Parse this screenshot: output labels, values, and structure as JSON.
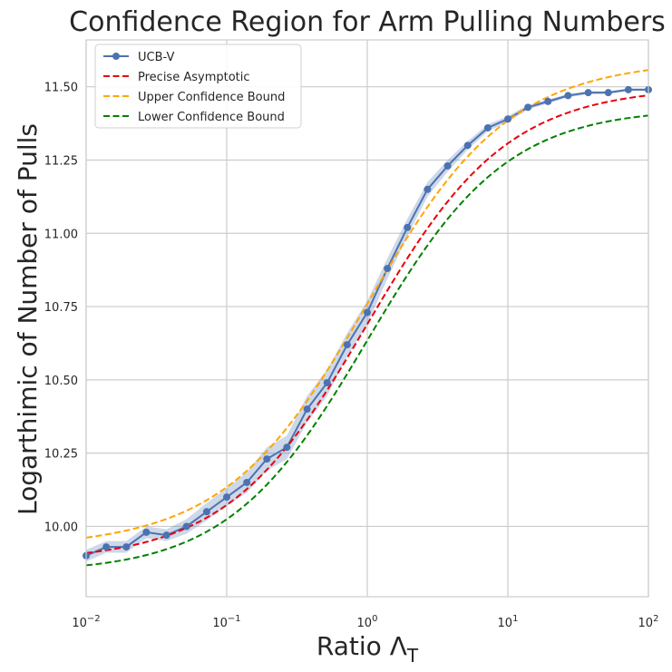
{
  "chart_data": {
    "type": "line",
    "title": "Confidence Region for Arm Pulling Numbers",
    "xlabel_main": "Ratio Λ",
    "xlabel_sub": "T",
    "ylabel": "Logarthimic of Number of Pulls",
    "xscale": "log",
    "xlim": [
      0.01,
      100
    ],
    "ylim": [
      9.76,
      11.66
    ],
    "grid": true,
    "legend_position": "top-left",
    "x_ticks": [
      {
        "value": 0.01,
        "base": "10",
        "exp": "−2"
      },
      {
        "value": 0.1,
        "base": "10",
        "exp": "−1"
      },
      {
        "value": 1,
        "base": "10",
        "exp": "0"
      },
      {
        "value": 10,
        "base": "10",
        "exp": "1"
      },
      {
        "value": 100,
        "base": "10",
        "exp": "2"
      }
    ],
    "y_ticks": [
      {
        "value": 10.0,
        "label": "10.00"
      },
      {
        "value": 10.25,
        "label": "10.25"
      },
      {
        "value": 10.5,
        "label": "10.50"
      },
      {
        "value": 10.75,
        "label": "10.75"
      },
      {
        "value": 11.0,
        "label": "11.00"
      },
      {
        "value": 11.25,
        "label": "11.25"
      },
      {
        "value": 11.5,
        "label": "11.50"
      }
    ],
    "asymptote": {
      "low": 9.88,
      "high": 11.5,
      "center_log10": 0.0,
      "scale": 0.5
    },
    "series": [
      {
        "name": "UCB-V",
        "color": "#4c72b0",
        "style": "solid-marker",
        "x": [
          0.01,
          0.0139,
          0.0193,
          0.0268,
          0.0373,
          0.0518,
          0.072,
          0.1,
          0.139,
          0.193,
          0.268,
          0.373,
          0.518,
          0.72,
          1.0,
          1.39,
          1.93,
          2.68,
          3.73,
          5.18,
          7.2,
          10.0,
          13.9,
          19.3,
          26.8,
          37.3,
          51.8,
          72.0,
          100.0
        ],
        "y": [
          9.9,
          9.93,
          9.93,
          9.98,
          9.97,
          10.0,
          10.05,
          10.1,
          10.15,
          10.23,
          10.27,
          10.4,
          10.49,
          10.62,
          10.73,
          10.88,
          11.02,
          11.15,
          11.23,
          11.3,
          11.36,
          11.39,
          11.43,
          11.45,
          11.47,
          11.48,
          11.48,
          11.49,
          11.49
        ]
      },
      {
        "name": "Precise Asymptotic",
        "color": "#e8000b",
        "style": "dashed",
        "offset": 0.0
      },
      {
        "name": "Upper Confidence Bound",
        "color": "#ffa500",
        "style": "dashed",
        "offset": 0.075,
        "offset_profile": "widen-right"
      },
      {
        "name": "Lower Confidence Bound",
        "color": "#008000",
        "style": "dashed",
        "offset": -0.06,
        "offset_profile": "widen-right"
      }
    ],
    "band": {
      "name": "UCB-V confidence band",
      "color": "#4c72b0",
      "opacity": 0.28,
      "half_width": [
        0.02,
        0.02,
        0.02,
        0.02,
        0.02,
        0.025,
        0.03,
        0.03,
        0.035,
        0.04,
        0.04,
        0.045,
        0.045,
        0.04,
        0.04,
        0.035,
        0.03,
        0.025,
        0.02,
        0.015,
        0.012,
        0.01,
        0.008,
        0.007,
        0.006,
        0.005,
        0.005,
        0.004,
        0.004
      ]
    }
  }
}
